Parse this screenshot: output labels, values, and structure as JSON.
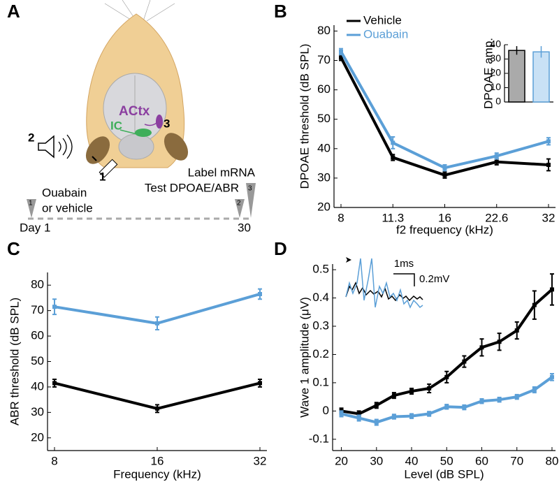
{
  "diagram": {
    "panel": "A",
    "regions": [
      "ACtx",
      "IC"
    ],
    "steps": [
      "1",
      "2",
      "3"
    ],
    "timeline": {
      "start_label": "Day 1",
      "end_label": "30",
      "markers": [
        "1",
        "2",
        "3"
      ],
      "event_1": [
        "Ouabain",
        "or vehicle"
      ],
      "event_2": "Test DPOAE/ABR",
      "event_3": "Label mRNA"
    }
  },
  "chart_data": [
    {
      "type": "line",
      "panel": "B",
      "ylabel": "DPOAE threshold (dB SPL)",
      "xlabel": "f2 frequency (kHz)",
      "categories": [
        "8",
        "11.3",
        "16",
        "22.6",
        "32"
      ],
      "ylim": [
        20,
        82
      ],
      "yticks": [
        20,
        30,
        40,
        50,
        60,
        70,
        80
      ],
      "legend": "top-left",
      "series": [
        {
          "name": "Vehicle",
          "color": "#000000",
          "values": [
            71,
            37,
            31,
            35.5,
            34.5
          ],
          "errors": [
            1,
            1,
            1,
            1,
            2
          ]
        },
        {
          "name": "Ouabain",
          "color": "#5b9fd7",
          "values": [
            73,
            42,
            33.5,
            37.5,
            42.5
          ],
          "errors": [
            1,
            2,
            1,
            1,
            1.2
          ]
        }
      ]
    },
    {
      "type": "bar",
      "ylabel": "DPOAE amp.",
      "ylim": [
        0,
        40
      ],
      "yticks": [
        0,
        10,
        20,
        30,
        40
      ],
      "values": [
        36,
        35
      ],
      "errors": [
        3,
        4
      ],
      "colors": [
        "#aaaaaa",
        "#c9e1f5"
      ],
      "edge_colors": [
        "#000000",
        "#5b9fd7"
      ]
    },
    {
      "type": "line",
      "panel": "C",
      "ylabel": "ABR threshold (dB SPL)",
      "xlabel": "Frequency (kHz)",
      "categories": [
        "8",
        "16",
        "32"
      ],
      "ylim": [
        15,
        85
      ],
      "yticks": [
        20,
        30,
        40,
        50,
        60,
        70,
        80
      ],
      "series": [
        {
          "color": "#000000",
          "values": [
            41.5,
            31.5,
            41.5
          ],
          "errors": [
            1.5,
            1.5,
            1.5
          ]
        },
        {
          "color": "#5b9fd7",
          "values": [
            71.5,
            65,
            76.5
          ],
          "errors": [
            3,
            2.5,
            2
          ]
        }
      ]
    },
    {
      "type": "line",
      "panel": "D",
      "ylabel": "Wave 1 amplitude (μV)",
      "xlabel": "Level (dB SPL)",
      "x": [
        20,
        25,
        30,
        35,
        40,
        45,
        50,
        55,
        60,
        65,
        70,
        75,
        80
      ],
      "xlim": [
        17.5,
        81
      ],
      "xticks": [
        20,
        30,
        40,
        50,
        60,
        70,
        80
      ],
      "ylim": [
        -0.14,
        0.52
      ],
      "yticks": [
        -0.1,
        0,
        0.1,
        0.2,
        0.3,
        0.4,
        0.5
      ],
      "annotations": [
        "1ms",
        "0.2mV"
      ],
      "series": [
        {
          "color": "#000000",
          "values": [
            0,
            -0.01,
            0.02,
            0.055,
            0.07,
            0.08,
            0.12,
            0.175,
            0.225,
            0.245,
            0.285,
            0.375,
            0.43
          ],
          "errors": [
            0.01,
            0.01,
            0.01,
            0.01,
            0.01,
            0.015,
            0.02,
            0.02,
            0.03,
            0.03,
            0.03,
            0.05,
            0.055
          ]
        },
        {
          "color": "#5b9fd7",
          "values": [
            -0.01,
            -0.025,
            -0.04,
            -0.02,
            -0.018,
            -0.01,
            0.015,
            0.013,
            0.035,
            0.04,
            0.05,
            0.075,
            0.12
          ],
          "errors": [
            0.01,
            0.01,
            0.01,
            0.008,
            0.008,
            0.008,
            0.008,
            0.008,
            0.008,
            0.008,
            0.008,
            0.01,
            0.012
          ]
        }
      ]
    }
  ]
}
